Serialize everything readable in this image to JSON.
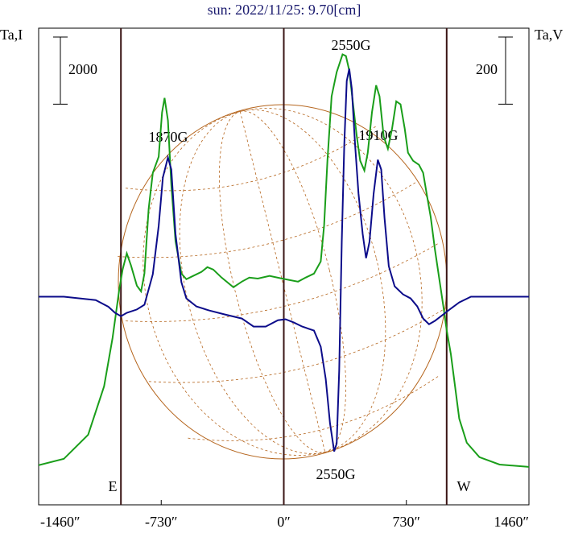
{
  "chart_data": {
    "type": "line",
    "title": "sun: 2022/11/25: 9.70[cm]",
    "ylabel": "Ta,I",
    "y2label": "Ta,V",
    "xlim": [
      -1460,
      1460
    ],
    "xticks": [
      {
        "value": -1460,
        "label": "-1460″"
      },
      {
        "value": -730,
        "label": "-730″"
      },
      {
        "value": 0,
        "label": "0″"
      },
      {
        "value": 730,
        "label": "730″"
      },
      {
        "value": 1460,
        "label": "1460″"
      }
    ],
    "ylim": [
      -1200,
      13000
    ],
    "y2lim": [
      -620,
      800
    ],
    "scale_bars": [
      {
        "value": 2000,
        "axis": "y"
      },
      {
        "value": 200,
        "axis": "y2"
      }
    ],
    "vlines": [
      -970,
      0,
      970
    ],
    "limb_labels": [
      "E",
      "W"
    ],
    "annotations": [
      "1870G",
      "2550G",
      "1910G",
      "2550G"
    ],
    "series": [
      {
        "color": "#1a9e1a",
        "x": [
          -1460,
          -1310,
          -1165,
          -1070,
          -1020,
          -980,
          -960,
          -935,
          -910,
          -875,
          -850,
          -830,
          -805,
          -780,
          -745,
          -725,
          -710,
          -690,
          -670,
          -645,
          -610,
          -580,
          -540,
          -490,
          -455,
          -420,
          -370,
          -300,
          -250,
          -205,
          -155,
          -85,
          -10,
          85,
          130,
          180,
          220,
          240,
          260,
          285,
          315,
          350,
          370,
          390,
          410,
          435,
          455,
          480,
          500,
          525,
          550,
          570,
          595,
          620,
          645,
          670,
          695,
          720,
          740,
          770,
          805,
          830,
          850,
          875,
          900,
          925,
          950,
          970,
          995,
          1020,
          1045,
          1090,
          1165,
          1285,
          1460
        ],
        "values": [
          -20,
          170,
          890,
          2330,
          3770,
          5210,
          5810,
          6290,
          5930,
          5330,
          5160,
          5690,
          7610,
          8690,
          9170,
          10490,
          10920,
          10250,
          8330,
          6650,
          5690,
          5520,
          5620,
          5740,
          5880,
          5810,
          5570,
          5280,
          5450,
          5570,
          5540,
          5620,
          5540,
          5450,
          5570,
          5690,
          6050,
          7130,
          9050,
          10970,
          11690,
          12220,
          12170,
          11740,
          10850,
          9770,
          9050,
          8760,
          9290,
          10490,
          11300,
          10970,
          9770,
          9410,
          10010,
          10820,
          10730,
          10010,
          9290,
          9050,
          8930,
          8690,
          8090,
          7370,
          6410,
          5570,
          4730,
          4010,
          3290,
          2330,
          1370,
          650,
          220,
          0,
          -70
        ]
      },
      {
        "color": "#0c0c8a",
        "axis": "y2",
        "x": [
          -1460,
          -1310,
          -1215,
          -1120,
          -1045,
          -1005,
          -970,
          -935,
          -875,
          -830,
          -780,
          -745,
          -720,
          -690,
          -670,
          -645,
          -610,
          -580,
          -520,
          -445,
          -350,
          -250,
          -180,
          -108,
          -35,
          10,
          60,
          110,
          180,
          220,
          250,
          275,
          300,
          315,
          330,
          345,
          360,
          375,
          390,
          405,
          425,
          445,
          470,
          490,
          510,
          535,
          560,
          580,
          600,
          625,
          660,
          710,
          755,
          795,
          830,
          865,
          900,
          950,
          980,
          1045,
          1115,
          1285,
          1460
        ],
        "values": [
          0,
          0,
          -5,
          -10,
          -30,
          -48,
          -58,
          -48,
          -38,
          -24,
          67,
          211,
          355,
          415,
          379,
          187,
          43,
          -5,
          -29,
          -41,
          -53,
          -65,
          -89,
          -89,
          -70,
          -67,
          -77,
          -89,
          -101,
          -149,
          -245,
          -377,
          -461,
          -437,
          -221,
          163,
          451,
          643,
          679,
          619,
          451,
          307,
          187,
          115,
          163,
          307,
          408,
          379,
          235,
          91,
          31,
          7,
          -5,
          -29,
          -65,
          -82,
          -72,
          -53,
          -41,
          -17,
          0,
          0,
          0
        ]
      }
    ]
  }
}
